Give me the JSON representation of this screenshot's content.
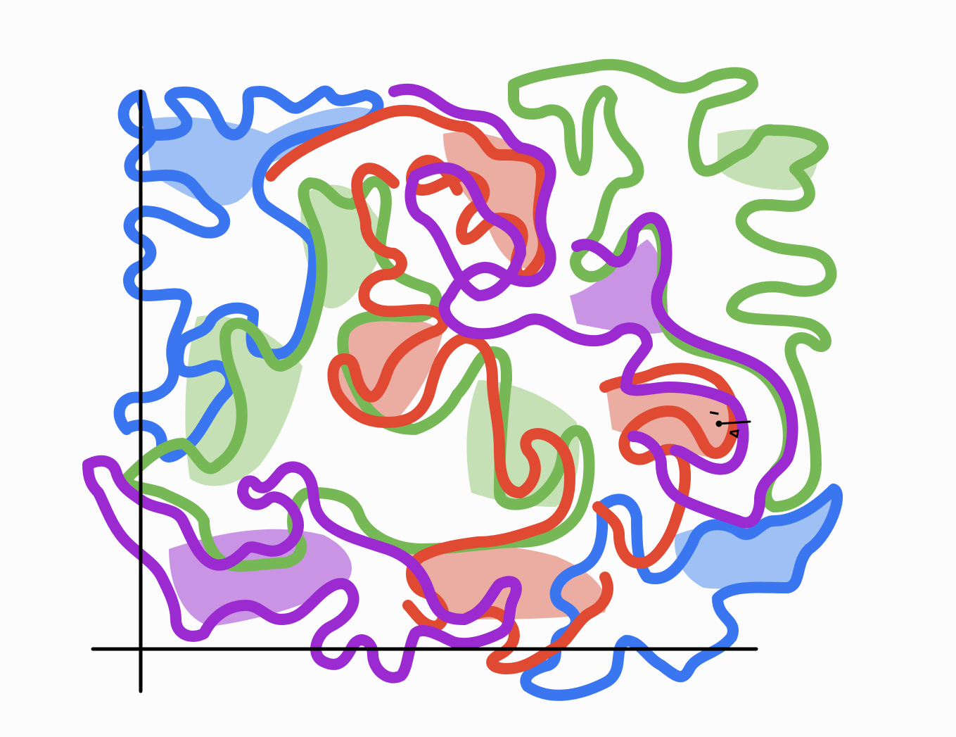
{
  "colors": {
    "blue": "#3a76f0",
    "blue_fill": "#9ec0f5",
    "purple": "#9b2bd0",
    "purple_fill": "#c994e4",
    "red": "#e04a33",
    "red_fill": "#ebaca1",
    "green": "#76b856",
    "green_fill": "#c6e0b6",
    "axis": "#000000",
    "background": "#fcfcfc"
  },
  "labels": {
    "top": "I",
    "bottom": "Δ"
  },
  "regions": [
    {
      "name": "blue-region",
      "color": "blue"
    },
    {
      "name": "green-region",
      "color": "green"
    },
    {
      "name": "red-region",
      "color": "red"
    },
    {
      "name": "purple-region",
      "color": "purple"
    }
  ]
}
